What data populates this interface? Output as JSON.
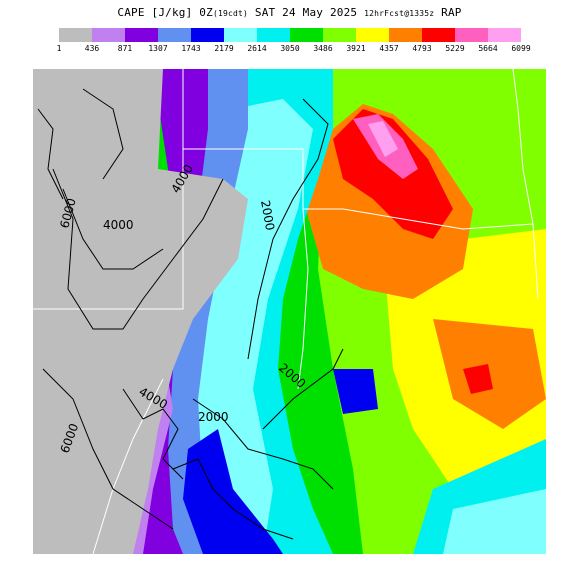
{
  "header": {
    "field": "CAPE",
    "units": "[J/kg]",
    "valid_hour": "0Z",
    "valid_local": "(19cdt)",
    "valid_date": "SAT 24 May 2025",
    "forecast": "12hrFcst@1335z",
    "model": "RAP"
  },
  "legend": {
    "colors": [
      "#bdbdbd",
      "#c080f0",
      "#8000e0",
      "#6090f0",
      "#0000f0",
      "#80ffff",
      "#00f0f0",
      "#00e000",
      "#80ff00",
      "#ffff00",
      "#ff8000",
      "#ff0000",
      "#ff60c0",
      "#ff9ff0"
    ],
    "tick_labels": [
      "1",
      "436",
      "871",
      "1307",
      "1743",
      "2179",
      "2614",
      "3050",
      "3486",
      "3921",
      "4357",
      "4793",
      "5229",
      "5664",
      "6099"
    ]
  },
  "map": {
    "contour_labels": [
      {
        "id": "l6000",
        "text": "6000"
      },
      {
        "id": "l4000a",
        "text": "4000"
      },
      {
        "id": "l4000b",
        "text": "4000"
      },
      {
        "id": "l2000a",
        "text": "2000"
      },
      {
        "id": "l2000b",
        "text": "2000"
      },
      {
        "id": "l2000c",
        "text": "2000"
      },
      {
        "id": "l4000c",
        "text": "4000"
      },
      {
        "id": "l6000b",
        "text": "6000"
      }
    ]
  }
}
